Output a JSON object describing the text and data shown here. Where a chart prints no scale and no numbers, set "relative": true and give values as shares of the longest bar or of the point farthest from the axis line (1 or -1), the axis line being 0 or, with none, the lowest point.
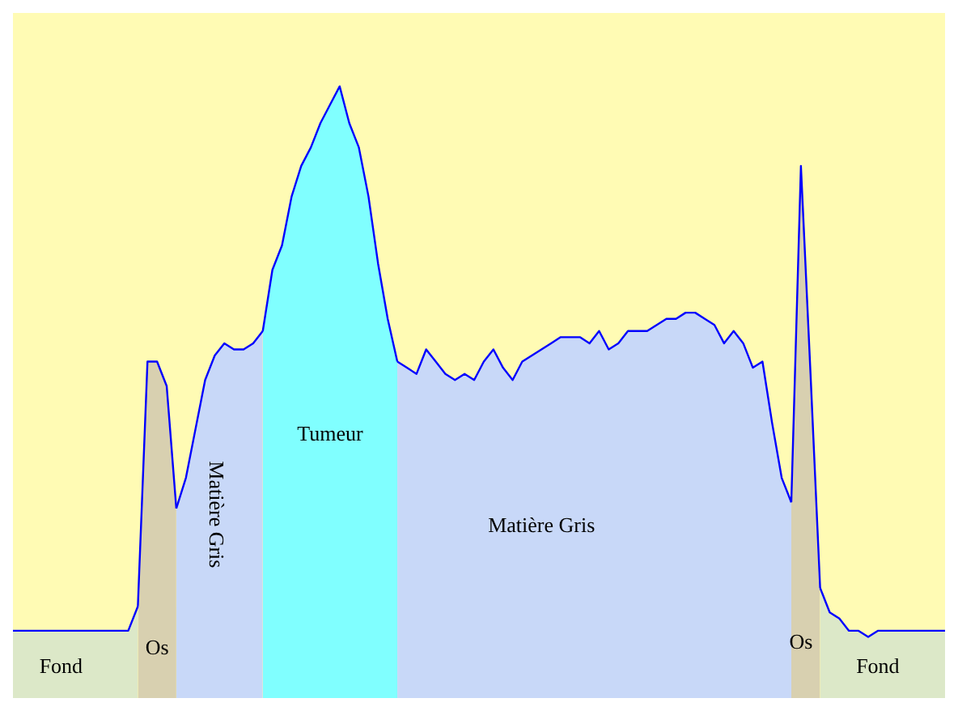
{
  "chart_data": {
    "type": "area",
    "relative": true,
    "legend": false,
    "marker": "none",
    "categories": [
      null,
      null,
      null,
      null,
      null,
      null,
      null,
      null,
      null,
      null,
      null,
      null,
      null,
      null,
      null,
      null,
      null,
      null,
      null,
      null,
      null,
      null,
      null,
      null,
      null,
      null,
      null,
      null,
      null,
      null,
      null,
      null,
      null,
      null,
      null,
      null,
      null,
      null,
      null,
      null,
      null,
      null,
      null,
      null,
      null,
      null,
      null,
      null,
      null,
      null,
      null,
      null,
      null,
      null,
      null,
      null,
      null,
      null,
      null,
      null,
      null,
      null,
      null,
      null,
      null,
      null,
      null,
      null,
      null,
      null,
      null,
      null,
      null,
      null,
      null,
      null,
      null,
      null,
      null,
      null,
      null,
      null,
      null,
      null,
      null,
      null,
      null,
      null,
      null,
      null,
      null,
      null,
      null,
      null,
      null,
      null,
      null,
      null
    ],
    "series": [
      {
        "color": "#dce8c8",
        "values": [
          0.11,
          0.11,
          0.11,
          0.11,
          0.11,
          0.11,
          0.11,
          0.11,
          0.11,
          0.11,
          0.11,
          0.11,
          0.11,
          0.15,
          null,
          null,
          null,
          null,
          null,
          null,
          null,
          null,
          null,
          null,
          null,
          null,
          null,
          null,
          null,
          null,
          null,
          null,
          null,
          null,
          null,
          null,
          null,
          null,
          null,
          null,
          null,
          null,
          null,
          null,
          null,
          null,
          null,
          null,
          null,
          null,
          null,
          null,
          null,
          null,
          null,
          null,
          null,
          null,
          null,
          null,
          null,
          null,
          null,
          null,
          null,
          null,
          null,
          null,
          null,
          null,
          null,
          null,
          null,
          null,
          null,
          null,
          null,
          null,
          null,
          null,
          null,
          null,
          null,
          null,
          0.18,
          0.14,
          0.13,
          0.11,
          0.11,
          0.1,
          0.11,
          0.11,
          0.11,
          0.11,
          0.11,
          0.11,
          0.11,
          0.11
        ]
      },
      {
        "color": "#d8d0b0",
        "values": [
          null,
          null,
          null,
          null,
          null,
          null,
          null,
          null,
          null,
          null,
          null,
          null,
          null,
          0.15,
          0.55,
          0.55,
          0.51,
          0.31,
          null,
          null,
          null,
          null,
          null,
          null,
          null,
          null,
          null,
          null,
          null,
          null,
          null,
          null,
          null,
          null,
          null,
          null,
          null,
          null,
          null,
          null,
          null,
          null,
          null,
          null,
          null,
          null,
          null,
          null,
          null,
          null,
          null,
          null,
          null,
          null,
          null,
          null,
          null,
          null,
          null,
          null,
          null,
          null,
          null,
          null,
          null,
          null,
          null,
          null,
          null,
          null,
          null,
          null,
          null,
          null,
          null,
          null,
          null,
          null,
          null,
          null,
          null,
          0.32,
          0.87,
          0.53,
          0.18,
          null,
          null,
          null,
          null,
          null,
          null,
          null,
          null,
          null,
          null,
          null,
          null,
          null
        ]
      },
      {
        "color": "#c8d8f8",
        "values": [
          null,
          null,
          null,
          null,
          null,
          null,
          null,
          null,
          null,
          null,
          null,
          null,
          null,
          null,
          null,
          null,
          null,
          0.31,
          0.36,
          0.44,
          0.52,
          0.56,
          0.58,
          0.57,
          0.57,
          0.58,
          0.6,
          null,
          null,
          null,
          null,
          null,
          null,
          null,
          null,
          null,
          null,
          null,
          null,
          null,
          0.55,
          0.54,
          0.53,
          0.57,
          0.55,
          0.53,
          0.52,
          0.53,
          0.52,
          0.55,
          0.57,
          0.54,
          0.52,
          0.55,
          0.56,
          0.57,
          0.58,
          0.59,
          0.59,
          0.59,
          0.58,
          0.6,
          0.57,
          0.58,
          0.6,
          0.6,
          0.6,
          0.61,
          0.62,
          0.62,
          0.63,
          0.63,
          0.62,
          0.61,
          0.58,
          0.6,
          0.58,
          0.54,
          0.55,
          0.45,
          0.36,
          0.32,
          null,
          null,
          null,
          null,
          null,
          null,
          null,
          null,
          null,
          null,
          null,
          null,
          null,
          null,
          null,
          null
        ]
      },
      {
        "color": "#80ffff",
        "values": [
          null,
          null,
          null,
          null,
          null,
          null,
          null,
          null,
          null,
          null,
          null,
          null,
          null,
          null,
          null,
          null,
          null,
          null,
          null,
          null,
          null,
          null,
          null,
          null,
          null,
          null,
          0.6,
          0.7,
          0.74,
          0.82,
          0.87,
          0.9,
          0.94,
          0.97,
          1,
          0.94,
          0.9,
          0.82,
          0.71,
          0.62,
          0.55,
          null,
          null,
          null,
          null,
          null,
          null,
          null,
          null,
          null,
          null,
          null,
          null,
          null,
          null,
          null,
          null,
          null,
          null,
          null,
          null,
          null,
          null,
          null,
          null,
          null,
          null,
          null,
          null,
          null,
          null,
          null,
          null,
          null,
          null,
          null,
          null,
          null,
          null,
          null,
          null,
          null,
          null,
          null,
          null,
          null,
          null,
          null,
          null,
          null,
          null,
          null,
          null,
          null,
          null,
          null,
          null,
          null
        ]
      }
    ],
    "annotations": [
      "Fond",
      "Os",
      "Matière Gris",
      "Tumeur",
      "Matière Gris",
      "Os",
      "Fond"
    ]
  }
}
